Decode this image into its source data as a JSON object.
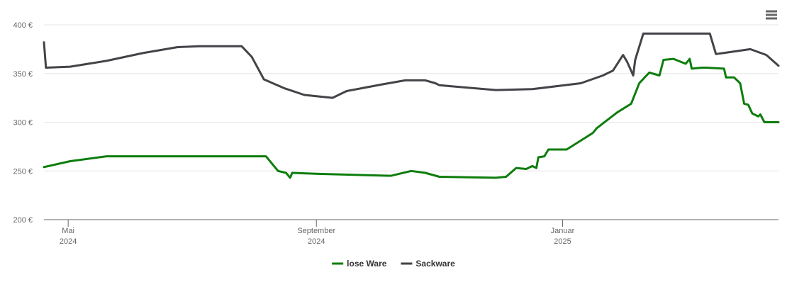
{
  "chart_data": {
    "type": "line",
    "xlim": [
      "2024-04-19",
      "2025-04-18"
    ],
    "xticks": [
      {
        "value": "2024-05-01",
        "label": [
          "Mai",
          "2024"
        ]
      },
      {
        "value": "2024-09-01",
        "label": [
          "September",
          "2024"
        ]
      },
      {
        "value": "2025-01-01",
        "label": [
          "Januar",
          "2025"
        ]
      }
    ],
    "ylim": [
      200,
      400
    ],
    "yticks": [
      {
        "value": 200,
        "label": "200 €"
      },
      {
        "value": 250,
        "label": "250 €"
      },
      {
        "value": 300,
        "label": "300 €"
      },
      {
        "value": 350,
        "label": "350 €"
      },
      {
        "value": 400,
        "label": "400 €"
      }
    ],
    "grid": true,
    "legend": "bottom",
    "series": [
      {
        "name": "lose Ware",
        "color": "#0d7d0d",
        "x": [
          "2024-04-19",
          "2024-05-02",
          "2024-05-20",
          "2024-06-24",
          "2024-08-07",
          "2024-08-13",
          "2024-08-17",
          "2024-08-19",
          "2024-08-20",
          "2024-09-02",
          "2024-09-20",
          "2024-10-08",
          "2024-10-18",
          "2024-10-25",
          "2024-11-01",
          "2024-11-29",
          "2024-12-04",
          "2024-12-09",
          "2024-12-14",
          "2024-12-17",
          "2024-12-19",
          "2024-12-20",
          "2024-12-23",
          "2024-12-25",
          "2025-01-03",
          "2025-01-16",
          "2025-01-18",
          "2025-01-28",
          "2025-02-04",
          "2025-02-08",
          "2025-02-13",
          "2025-02-18",
          "2025-02-20",
          "2025-02-25",
          "2025-03-03",
          "2025-03-05",
          "2025-03-06",
          "2025-03-11",
          "2025-03-13",
          "2025-03-22",
          "2025-03-23",
          "2025-03-27",
          "2025-03-30",
          "2025-04-01",
          "2025-04-03",
          "2025-04-05",
          "2025-04-08",
          "2025-04-09",
          "2025-04-11",
          "2025-04-18"
        ],
        "values": [
          254,
          260,
          265,
          265,
          265,
          250,
          248,
          243,
          248,
          247,
          246,
          245,
          250,
          248,
          244,
          243,
          244,
          253,
          252,
          255,
          253,
          264,
          265,
          272,
          272,
          289,
          294,
          310,
          319,
          340,
          351,
          348,
          364,
          365,
          360,
          365,
          355,
          356,
          356,
          355,
          346,
          346,
          340,
          319,
          318,
          309,
          306,
          308,
          300,
          300
        ]
      },
      {
        "name": "Sackware",
        "color": "#434348",
        "x": [
          "2024-04-19",
          "2024-04-20",
          "2024-05-02",
          "2024-05-20",
          "2024-06-07",
          "2024-06-24",
          "2024-07-05",
          "2024-07-26",
          "2024-07-31",
          "2024-08-06",
          "2024-08-16",
          "2024-08-26",
          "2024-09-09",
          "2024-09-12",
          "2024-09-16",
          "2024-10-04",
          "2024-10-15",
          "2024-10-25",
          "2024-10-30",
          "2024-11-01",
          "2024-11-29",
          "2024-12-17",
          "2025-01-10",
          "2025-01-21",
          "2025-01-26",
          "2025-01-31",
          "2025-02-02",
          "2025-02-05",
          "2025-02-06",
          "2025-02-10",
          "2025-03-15",
          "2025-03-18",
          "2025-03-25",
          "2025-04-04",
          "2025-04-12",
          "2025-04-18"
        ],
        "values": [
          382,
          356,
          357,
          363,
          371,
          377,
          378,
          378,
          367,
          344,
          335,
          328,
          325,
          328,
          332,
          339,
          343,
          343,
          340,
          338,
          333,
          334,
          340,
          348,
          353,
          369,
          362,
          348,
          364,
          391,
          391,
          370,
          372,
          375,
          369,
          358
        ]
      }
    ]
  }
}
